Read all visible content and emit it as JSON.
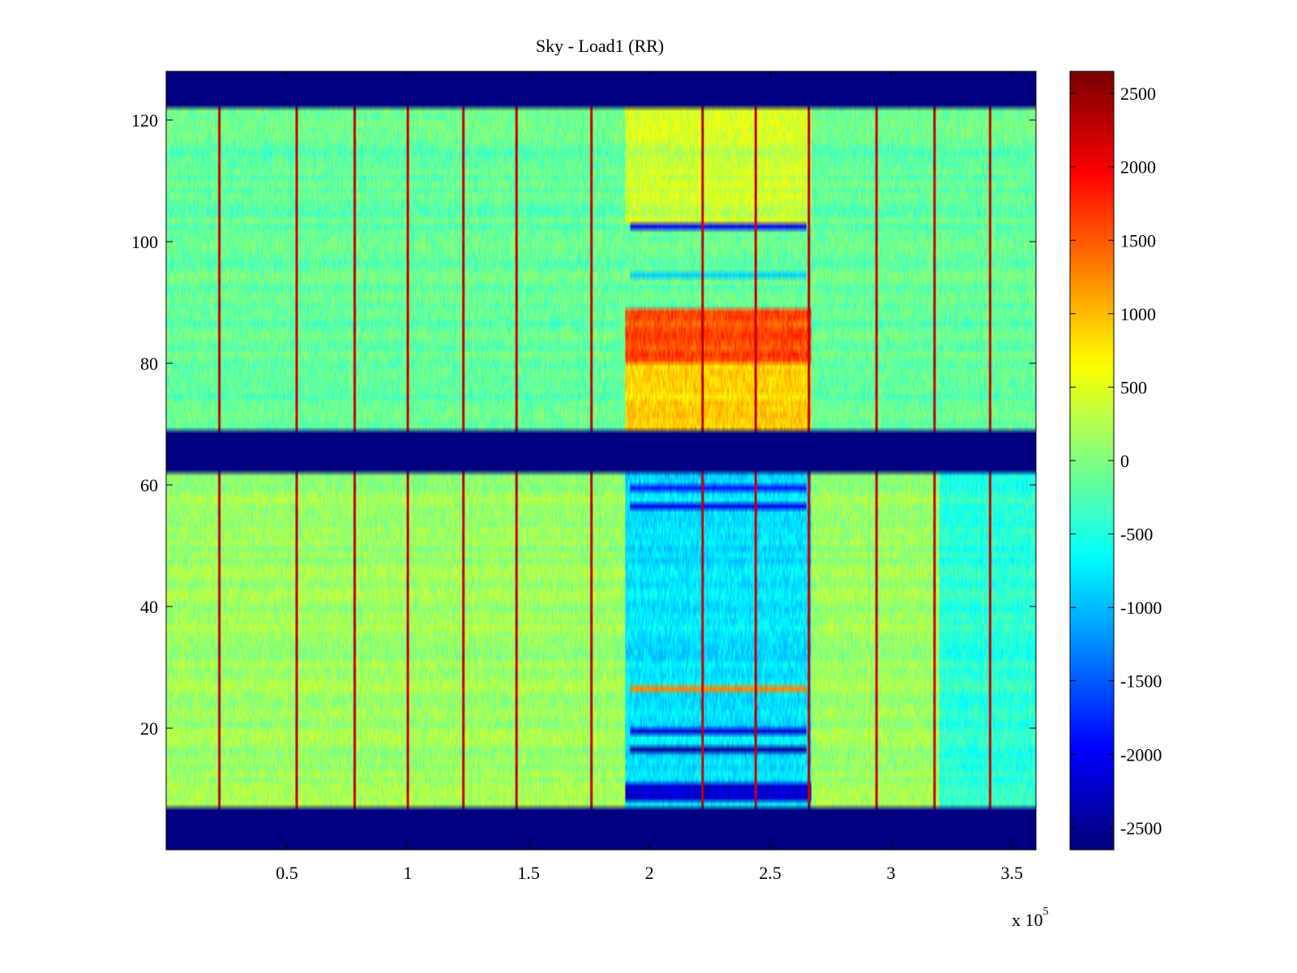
{
  "chart_data": {
    "type": "heatmap",
    "title": "Sky - Load1 (RR)",
    "xlabel": "",
    "ylabel": "",
    "xlim": [
      0,
      360000
    ],
    "ylim": [
      0,
      128
    ],
    "x_exponent_label": "x 10",
    "x_exponent_power": "5",
    "x_ticks": [
      {
        "value": 50000,
        "label": "0.5"
      },
      {
        "value": 100000,
        "label": "1"
      },
      {
        "value": 150000,
        "label": "1.5"
      },
      {
        "value": 200000,
        "label": "2"
      },
      {
        "value": 250000,
        "label": "2.5"
      },
      {
        "value": 300000,
        "label": "3"
      },
      {
        "value": 350000,
        "label": "3.5"
      }
    ],
    "y_ticks": [
      {
        "value": 20,
        "label": "20"
      },
      {
        "value": 40,
        "label": "40"
      },
      {
        "value": 60,
        "label": "60"
      },
      {
        "value": 80,
        "label": "80"
      },
      {
        "value": 100,
        "label": "100"
      },
      {
        "value": 120,
        "label": "120"
      }
    ],
    "colorbar": {
      "colormap": "jet",
      "clim": [
        -2650,
        2650
      ],
      "ticks": [
        {
          "value": 2500,
          "label": "2500"
        },
        {
          "value": 2000,
          "label": "2000"
        },
        {
          "value": 1500,
          "label": "1500"
        },
        {
          "value": 1000,
          "label": "1000"
        },
        {
          "value": 500,
          "label": "500"
        },
        {
          "value": 0,
          "label": "0"
        },
        {
          "value": -500,
          "label": "-500"
        },
        {
          "value": -1000,
          "label": "-1000"
        },
        {
          "value": -1500,
          "label": "-1500"
        },
        {
          "value": -2000,
          "label": "-2000"
        },
        {
          "value": -2500,
          "label": "-2500"
        }
      ]
    },
    "masked_rows": [
      [
        0,
        7
      ],
      [
        62,
        69
      ],
      [
        122,
        128
      ]
    ],
    "regions": [
      {
        "rows": [
          69,
          122
        ],
        "x_range": [
          0,
          360000
        ],
        "typical_value": -150
      },
      {
        "rows": [
          7,
          62
        ],
        "x_range": [
          0,
          360000
        ],
        "typical_value": 150
      },
      {
        "rows": [
          7,
          62
        ],
        "x_range": [
          320000,
          360000
        ],
        "typical_value": -450
      },
      {
        "rows": [
          103,
          122
        ],
        "x_range": [
          190000,
          267000
        ],
        "typical_value": 400
      },
      {
        "rows": [
          80,
          89
        ],
        "x_range": [
          190000,
          267000
        ],
        "typical_value": 1600
      },
      {
        "rows": [
          69,
          80
        ],
        "x_range": [
          190000,
          267000
        ],
        "typical_value": 900
      },
      {
        "rows": [
          7,
          62
        ],
        "x_range": [
          190000,
          267000
        ],
        "typical_value": -800
      },
      {
        "rows": [
          8,
          11
        ],
        "x_range": [
          190000,
          267000
        ],
        "typical_value": -2300
      }
    ],
    "row_bands": [
      {
        "row": 102,
        "x_range": [
          192000,
          265000
        ],
        "value": -2000
      },
      {
        "row": 94,
        "x_range": [
          192000,
          265000
        ],
        "value": -900
      },
      {
        "row": 59,
        "x_range": [
          192000,
          265000
        ],
        "value": -1900
      },
      {
        "row": 56,
        "x_range": [
          192000,
          265000
        ],
        "value": -2100
      },
      {
        "row": 19,
        "x_range": [
          192000,
          265000
        ],
        "value": -2200
      },
      {
        "row": 16,
        "x_range": [
          192000,
          265000
        ],
        "value": -2500
      },
      {
        "row": 26,
        "x_range": [
          192000,
          265000
        ],
        "value": 1300
      }
    ],
    "vertical_streaks": [
      {
        "x": 22000,
        "value": 2300
      },
      {
        "x": 54000,
        "value": 2300
      },
      {
        "x": 78000,
        "value": 2300
      },
      {
        "x": 100000,
        "value": 2300
      },
      {
        "x": 123000,
        "value": 2300
      },
      {
        "x": 145000,
        "value": 2300
      },
      {
        "x": 176000,
        "value": 2300
      },
      {
        "x": 222000,
        "value": 2300
      },
      {
        "x": 244000,
        "value": 2300
      },
      {
        "x": 266000,
        "value": 2300
      },
      {
        "x": 294000,
        "value": 2300
      },
      {
        "x": 318000,
        "value": 2300
      },
      {
        "x": 341000,
        "value": 2300
      }
    ]
  }
}
